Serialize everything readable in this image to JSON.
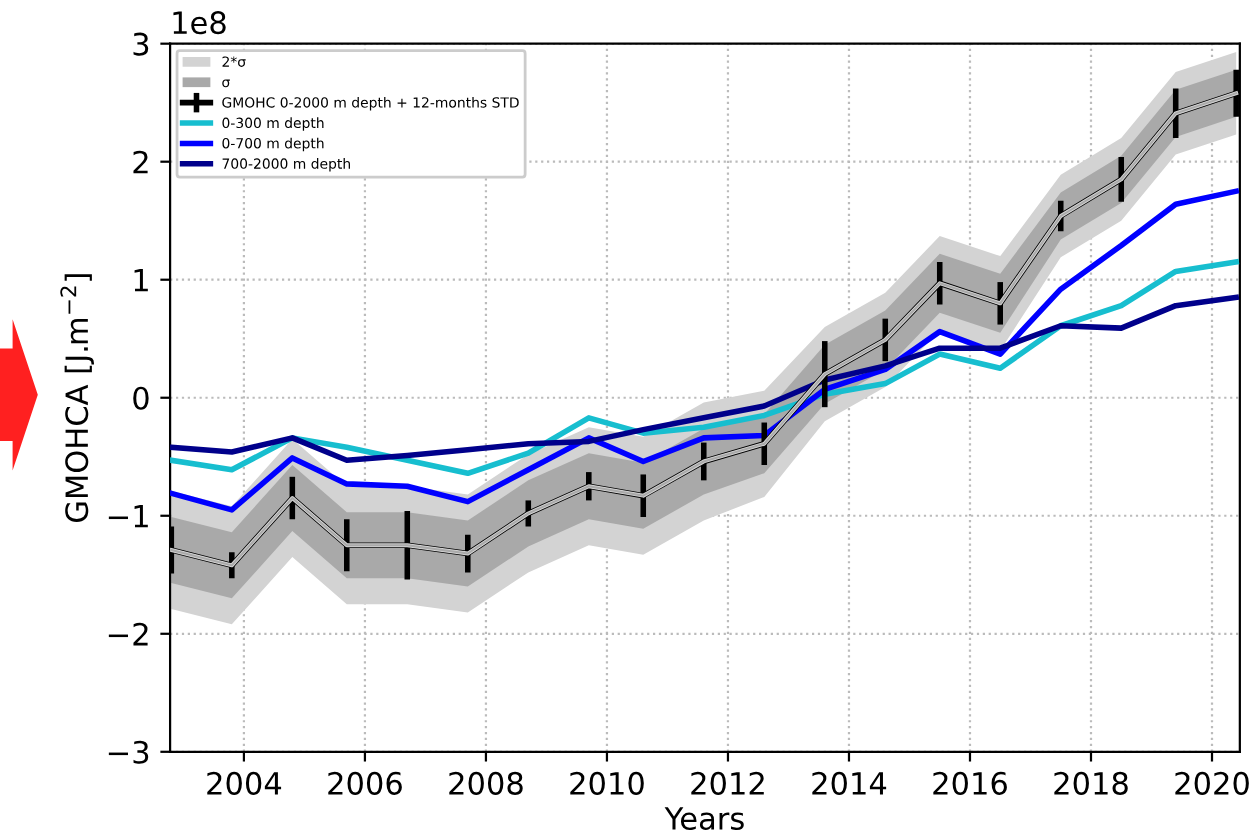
{
  "chart_data": {
    "type": "line",
    "xlabel": "Years",
    "ylabel": "GMOHCA [J.m$^{−2}$]",
    "x": [
      2002.8,
      2003.8,
      2004.8,
      2005.7,
      2006.7,
      2007.7,
      2008.7,
      2009.7,
      2010.6,
      2011.6,
      2012.6,
      2013.6,
      2014.6,
      2015.5,
      2016.5,
      2017.5,
      2018.5,
      2019.4,
      2020.4
    ],
    "series": [
      {
        "name": "2*σ",
        "color": "#d3d3d3",
        "lower": [
          -1.79,
          -1.92,
          -1.35,
          -1.75,
          -1.75,
          -1.82,
          -1.48,
          -1.25,
          -1.33,
          -1.04,
          -0.84,
          -0.2,
          0.09,
          0.57,
          0.4,
          1.19,
          1.5,
          2.06,
          2.23
        ],
        "values": [
          -1.29,
          -1.42,
          -0.85,
          -1.25,
          -1.25,
          -1.32,
          -0.98,
          -0.75,
          -0.83,
          -0.54,
          -0.39,
          0.2,
          0.49,
          0.97,
          0.8,
          1.54,
          1.85,
          2.41,
          2.58
        ],
        "upper": [
          -0.79,
          -0.92,
          -0.35,
          -0.75,
          -0.75,
          -0.82,
          -0.48,
          -0.25,
          -0.33,
          -0.04,
          0.06,
          0.6,
          0.89,
          1.37,
          1.2,
          1.89,
          2.2,
          2.76,
          2.93
        ]
      },
      {
        "name": "σ",
        "color": "#a9a9a9",
        "lower": [
          -1.57,
          -1.7,
          -1.13,
          -1.53,
          -1.53,
          -1.6,
          -1.26,
          -1.03,
          -1.11,
          -0.82,
          -0.64,
          -0.05,
          0.24,
          0.72,
          0.55,
          1.34,
          1.65,
          2.21,
          2.38
        ],
        "values": [
          -1.29,
          -1.42,
          -0.85,
          -1.25,
          -1.25,
          -1.32,
          -0.98,
          -0.75,
          -0.83,
          -0.54,
          -0.39,
          0.2,
          0.49,
          0.97,
          0.8,
          1.54,
          1.85,
          2.41,
          2.58
        ],
        "upper": [
          -1.01,
          -1.14,
          -0.57,
          -0.97,
          -0.97,
          -1.04,
          -0.7,
          -0.47,
          -0.55,
          -0.26,
          -0.14,
          0.45,
          0.74,
          1.22,
          1.05,
          1.74,
          2.05,
          2.61,
          2.78
        ]
      },
      {
        "name": "GMOHC 0-2000 m depth + 12-months STD",
        "color": "#000000",
        "values": [
          -1.29,
          -1.42,
          -0.85,
          -1.25,
          -1.25,
          -1.32,
          -0.98,
          -0.75,
          -0.83,
          -0.54,
          -0.39,
          0.2,
          0.49,
          0.97,
          0.8,
          1.54,
          1.85,
          2.41,
          2.58
        ],
        "errors": [
          0.2,
          0.11,
          0.18,
          0.22,
          0.29,
          0.16,
          0.11,
          0.12,
          0.18,
          0.16,
          0.18,
          0.28,
          0.18,
          0.18,
          0.18,
          0.13,
          0.19,
          0.21,
          0.2
        ]
      },
      {
        "name": "0-300 m depth",
        "color": "#17becf",
        "values": [
          -0.53,
          -0.61,
          -0.34,
          -0.42,
          -0.53,
          -0.64,
          -0.47,
          -0.17,
          -0.3,
          -0.25,
          -0.15,
          0.03,
          0.12,
          0.37,
          0.25,
          0.61,
          0.78,
          1.07,
          1.15
        ]
      },
      {
        "name": "0-700 m depth",
        "color": "#0000ff",
        "values": [
          -0.81,
          -0.95,
          -0.51,
          -0.73,
          -0.75,
          -0.88,
          -0.61,
          -0.34,
          -0.54,
          -0.34,
          -0.32,
          0.07,
          0.24,
          0.56,
          0.37,
          0.92,
          1.29,
          1.64,
          1.75
        ]
      },
      {
        "name": "700-2000 m depth",
        "color": "#00008b",
        "values": [
          -0.42,
          -0.46,
          -0.34,
          -0.53,
          -0.49,
          -0.44,
          -0.39,
          -0.37,
          -0.27,
          -0.17,
          -0.07,
          0.15,
          0.27,
          0.42,
          0.42,
          0.61,
          0.59,
          0.78,
          0.85
        ]
      }
    ],
    "xlim": [
      2002.78,
      2020.46
    ],
    "xticks": [
      2004,
      2006,
      2008,
      2010,
      2012,
      2014,
      2016,
      2018,
      2020
    ],
    "ylim": [
      -3,
      3
    ],
    "yticks": [
      {
        "value": -3,
        "label": "−3"
      },
      {
        "value": -2,
        "label": "−2"
      },
      {
        "value": -1,
        "label": "−1"
      },
      0,
      1,
      2,
      3
    ],
    "annotations": [
      "1e8"
    ],
    "grid": true,
    "legend": "top left"
  }
}
